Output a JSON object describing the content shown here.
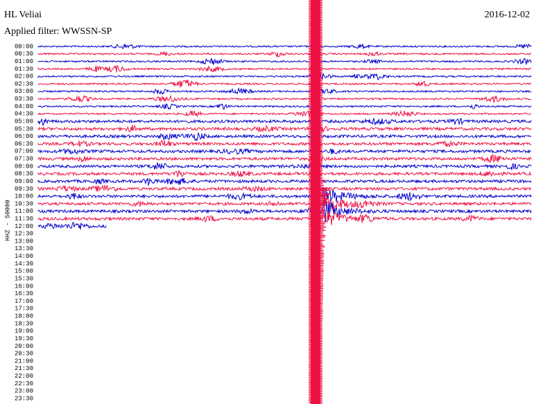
{
  "header": {
    "station": "HL Veliai",
    "date": "2016-12-02",
    "filter": "Applied filter: WWSSN-SP"
  },
  "axis_label": "HHZ - 50000",
  "rows": [
    "00:00",
    "00:30",
    "01:00",
    "01:30",
    "02:00",
    "02:30",
    "03:00",
    "03:30",
    "04:00",
    "04:30",
    "05:00",
    "05:30",
    "06:00",
    "06:30",
    "07:00",
    "07:30",
    "08:00",
    "08:30",
    "09:00",
    "09:30",
    "10:00",
    "10:30",
    "11:00",
    "11:30",
    "12:00",
    "12:30",
    "13:00",
    "13:30",
    "14:00",
    "14:30",
    "15:00",
    "15:30",
    "16:00",
    "16:30",
    "17:00",
    "17:30",
    "18:00",
    "18:30",
    "19:00",
    "19:30",
    "20:00",
    "20:30",
    "21:00",
    "21:30",
    "22:00",
    "22:30",
    "23:00",
    "23:30"
  ]
}
